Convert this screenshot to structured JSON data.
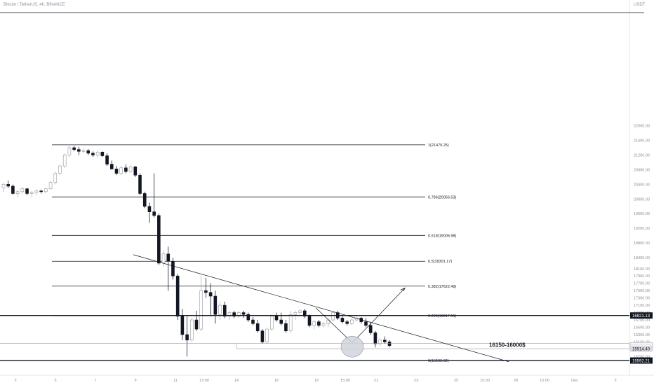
{
  "header": {
    "title": "Bitcoin / TetherUS, 4h, BINANCE"
  },
  "axis": {
    "unit": "USDT"
  },
  "chart_data": {
    "type": "candlestick",
    "title": "Bitcoin / TetherUS, 4h, BINANCE",
    "ylim": [
      15500,
      22300
    ],
    "y_ticks": [
      22000,
      21600,
      21200,
      20800,
      20400,
      20000,
      19600,
      19200,
      18800,
      18400,
      18100,
      17900,
      17700,
      17500,
      17300,
      17100,
      16900,
      16700,
      16500,
      16300,
      16100,
      15900,
      15700
    ],
    "x_ticks": [
      "3",
      "5",
      "7",
      "9",
      "11",
      "13:00",
      "14",
      "16",
      "18",
      "15:00",
      "21",
      "23",
      "25",
      "15:00",
      "28",
      "15:00",
      "Dec",
      "3"
    ],
    "fib_levels": [
      {
        "label": "1(21479.25)",
        "value": 21479.25
      },
      {
        "label": "0.786(20056.53)",
        "value": 20056.53
      },
      {
        "label": "0.618(19005.98)",
        "value": 19005.98
      },
      {
        "label": "0.5(18301.17)",
        "value": 18301.17
      },
      {
        "label": "0.382(17622.49)",
        "value": 17622.49
      },
      {
        "label": "0.236(16817.51)",
        "value": 16817.51
      },
      {
        "label": "0(15593.32)",
        "value": 15593.32
      }
    ],
    "price_tags": [
      {
        "label": "16821.13",
        "value": 16821.13,
        "bg": "#131722",
        "fg": "#ffffff"
      },
      {
        "label": "15999.95",
        "value": 15999.95,
        "bg": "#ffffff",
        "fg": "#131722"
      },
      {
        "label": "43:28",
        "value": 15957,
        "bg": "#ffffff",
        "fg": "#131722"
      },
      {
        "label": "15914.40",
        "value": 15914.4,
        "bg": "#d9dadd",
        "fg": "#131722"
      },
      {
        "label": "15592.21",
        "value": 15592.21,
        "bg": "#131722",
        "fg": "#ffffff"
      }
    ],
    "annotation": {
      "text": "16150-16000$",
      "value": 16020
    },
    "candles": [
      [
        20300,
        20450,
        20200,
        20400
      ],
      [
        20400,
        20500,
        20300,
        20350
      ],
      [
        20350,
        20400,
        20120,
        20150
      ],
      [
        20150,
        20250,
        20050,
        20200
      ],
      [
        20200,
        20320,
        20150,
        20280
      ],
      [
        20280,
        20300,
        20100,
        20150
      ],
      [
        20150,
        20220,
        20050,
        20180
      ],
      [
        20180,
        20260,
        20100,
        20220
      ],
      [
        20220,
        20260,
        20150,
        20200
      ],
      [
        20200,
        20300,
        20150,
        20280
      ],
      [
        20280,
        20500,
        20250,
        20450
      ],
      [
        20450,
        20750,
        20400,
        20700
      ],
      [
        20700,
        20950,
        20650,
        20900
      ],
      [
        20900,
        21250,
        20850,
        21200
      ],
      [
        21200,
        21480,
        21150,
        21400
      ],
      [
        21400,
        21450,
        21300,
        21350
      ],
      [
        21350,
        21420,
        21200,
        21300
      ],
      [
        21300,
        21380,
        21250,
        21320
      ],
      [
        21320,
        21360,
        21200,
        21250
      ],
      [
        21250,
        21300,
        21150,
        21200
      ],
      [
        21200,
        21320,
        21150,
        21280
      ],
      [
        21280,
        21300,
        21150,
        21180
      ],
      [
        21180,
        21250,
        20900,
        20950
      ],
      [
        20950,
        21050,
        20800,
        20820
      ],
      [
        20820,
        20900,
        20650,
        20700
      ],
      [
        20700,
        20900,
        20650,
        20850
      ],
      [
        20850,
        20950,
        20700,
        20750
      ],
      [
        20750,
        20920,
        20700,
        20880
      ],
      [
        20880,
        20900,
        20600,
        20650
      ],
      [
        20650,
        20700,
        20100,
        20150
      ],
      [
        20150,
        20200,
        19750,
        19800
      ],
      [
        19800,
        19900,
        19350,
        19650
      ],
      [
        19650,
        20700,
        19500,
        19550
      ],
      [
        19550,
        19600,
        18200,
        18250
      ],
      [
        18250,
        18600,
        18150,
        18500
      ],
      [
        18500,
        18700,
        17500,
        18300
      ],
      [
        18300,
        18400,
        17800,
        17900
      ],
      [
        17900,
        17950,
        16700,
        16800
      ],
      [
        16800,
        17000,
        16150,
        16300
      ],
      [
        16300,
        16800,
        15700,
        16150
      ],
      [
        16150,
        16750,
        16100,
        16700
      ],
      [
        16700,
        16950,
        16400,
        16450
      ],
      [
        16450,
        17900,
        16400,
        17500
      ],
      [
        17500,
        17850,
        17300,
        17450
      ],
      [
        17450,
        17700,
        16800,
        17350
      ],
      [
        17350,
        17500,
        16600,
        16850
      ],
      [
        16850,
        17200,
        16700,
        17100
      ],
      [
        17100,
        17200,
        16750,
        16800
      ],
      [
        16800,
        16950,
        16700,
        16900
      ],
      [
        16900,
        16950,
        16750,
        16800
      ],
      [
        16800,
        16950,
        16750,
        16900
      ],
      [
        16900,
        16950,
        16750,
        16850
      ],
      [
        16850,
        16900,
        16650,
        16700
      ],
      [
        16700,
        16780,
        16550,
        16600
      ],
      [
        16600,
        16700,
        16350,
        16400
      ],
      [
        16400,
        16450,
        16050,
        16100
      ],
      [
        16100,
        16500,
        16050,
        16450
      ],
      [
        16450,
        16850,
        16400,
        16800
      ],
      [
        16800,
        16900,
        16650,
        16700
      ],
      [
        16700,
        16900,
        16550,
        16600
      ],
      [
        16600,
        16700,
        16350,
        16400
      ],
      [
        16400,
        16950,
        16350,
        16850
      ],
      [
        16850,
        16950,
        16700,
        16900
      ],
      [
        16900,
        17000,
        16800,
        16950
      ],
      [
        16950,
        17000,
        16750,
        16800
      ],
      [
        16800,
        16850,
        16500,
        16550
      ],
      [
        16550,
        16700,
        16450,
        16650
      ],
      [
        16650,
        16700,
        16500,
        16550
      ],
      [
        16550,
        16650,
        16500,
        16600
      ],
      [
        16600,
        16750,
        16500,
        16700
      ],
      [
        16700,
        16950,
        16650,
        16900
      ],
      [
        16900,
        16950,
        16700,
        16750
      ],
      [
        16750,
        16800,
        16600,
        16650
      ],
      [
        16650,
        16700,
        16550,
        16600
      ],
      [
        16600,
        16750,
        16550,
        16700
      ],
      [
        16700,
        16800,
        16650,
        16750
      ],
      [
        16750,
        16780,
        16600,
        16650
      ],
      [
        16650,
        16750,
        16500,
        16550
      ],
      [
        16550,
        16650,
        16300,
        16350
      ],
      [
        16350,
        16400,
        15950,
        16050
      ],
      [
        16050,
        16200,
        16000,
        16150
      ],
      [
        16150,
        16250,
        16050,
        16100
      ],
      [
        16100,
        16150,
        15950,
        16000
      ]
    ]
  }
}
